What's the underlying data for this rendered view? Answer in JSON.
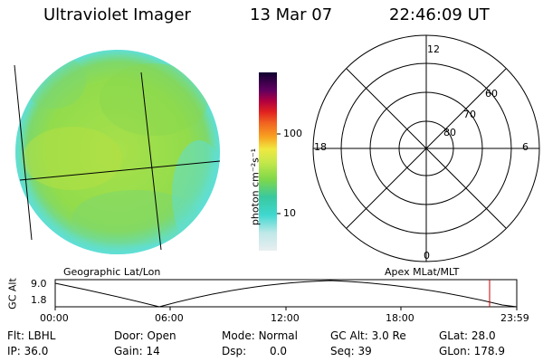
{
  "header": {
    "instrument": "Ultraviolet Imager",
    "date": "13 Mar 07",
    "time": "22:46:09 UT"
  },
  "colorbar": {
    "unit_label": "photon cm⁻²s⁻¹",
    "ticks": [
      "100",
      "10"
    ]
  },
  "polar_plot": {
    "mlt_labels": [
      "12",
      "18",
      "6",
      "0"
    ],
    "mlat_labels": [
      "60",
      "70",
      "80"
    ]
  },
  "image_caption_left": "Geographic Lat/Lon",
  "image_caption_right": "Apex MLat/MLT",
  "orbit_plot": {
    "y_axis_label": "GC Alt",
    "y_ticks": [
      "9.0",
      "1.8"
    ],
    "x_ticks": [
      "00:00",
      "06:00",
      "12:00",
      "18:00",
      "23:59"
    ],
    "current_time_marker": "22:46"
  },
  "footer": {
    "filter_label": "Flt:",
    "filter_value": "LBHL",
    "ip_label": "IP:",
    "ip_value": "36.0",
    "door_label": "Door:",
    "door_value": "Open",
    "gain_label": "Gain:",
    "gain_value": "14",
    "mode_label": "Mode:",
    "mode_value": "Normal",
    "dsp_label": "Dsp:",
    "dsp_value": "0.0",
    "gcalt_label": "GC Alt:",
    "gcalt_value": "3.0 Re",
    "seq_label": "Seq:",
    "seq_value": "39",
    "glat_label": "GLat:",
    "glat_value": "28.0",
    "glon_label": "GLon:",
    "glon_value": "178.9"
  },
  "colors": {
    "disk_base": "#9ee04a",
    "disk_edge": "#5fdfd6",
    "marker": "#cc0000"
  }
}
